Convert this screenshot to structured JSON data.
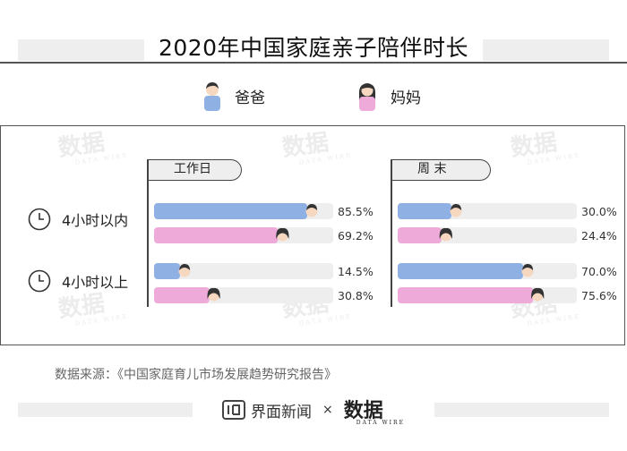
{
  "title": "2020年中国家庭亲子陪伴时长",
  "legend": [
    {
      "label": "爸爸",
      "color": "#8fb0e3",
      "icon": "father-avatar"
    },
    {
      "label": "妈妈",
      "color": "#eeaad8",
      "icon": "mother-avatar"
    }
  ],
  "colors": {
    "father": "#8fb0e3",
    "mother": "#eeaad8",
    "track": "#eeeeee"
  },
  "watermark": {
    "text": "数据",
    "sub": "DATA WIRE"
  },
  "row_labels": [
    "4小时以内",
    "4小时以上"
  ],
  "chart_data": {
    "type": "bar",
    "orientation": "horizontal",
    "title": "2020年中国家庭亲子陪伴时长",
    "categories": [
      "4小时以内",
      "4小时以上"
    ],
    "panels": [
      {
        "name": "工作日",
        "series": [
          {
            "name": "爸爸",
            "values": [
              85.5,
              14.5
            ]
          },
          {
            "name": "妈妈",
            "values": [
              69.2,
              30.8
            ]
          }
        ],
        "labels": [
          "85.5%",
          "69.2%",
          "14.5%",
          "30.8%"
        ]
      },
      {
        "name": "周 末",
        "series": [
          {
            "name": "爸爸",
            "values": [
              30.0,
              70.0
            ]
          },
          {
            "name": "妈妈",
            "values": [
              24.4,
              75.6
            ]
          }
        ],
        "labels": [
          "30.0%",
          "24.4%",
          "70.0%",
          "75.6%"
        ]
      }
    ],
    "xlim": [
      0,
      100
    ],
    "legend": "top"
  },
  "source": "数据来源：《中国家庭育儿市场发展趋势研究报告》",
  "footer": {
    "brand": "界面新闻",
    "separator": "×",
    "partner": "数据",
    "partner_sub": "DATA WIRE"
  }
}
